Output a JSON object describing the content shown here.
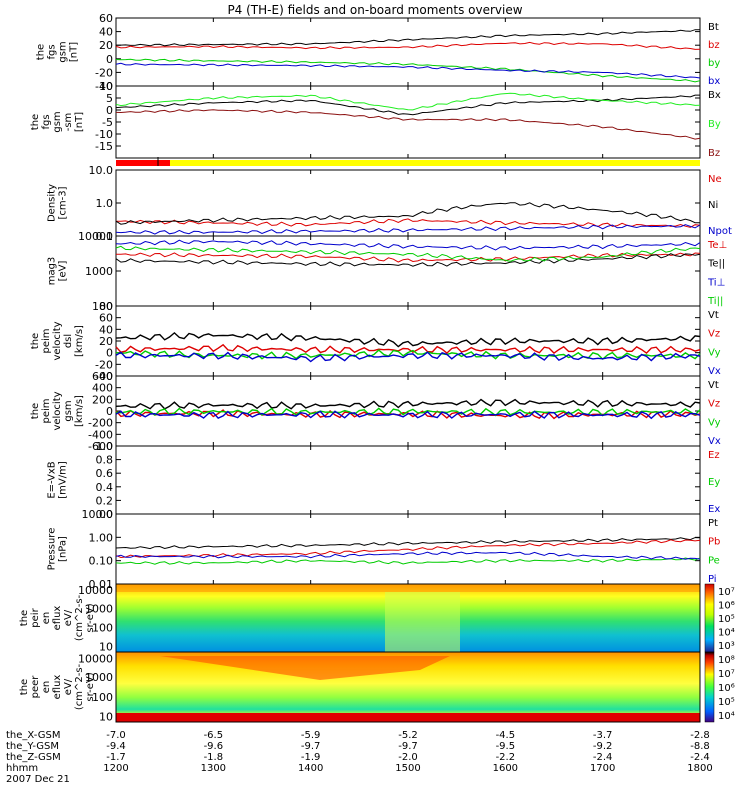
{
  "title": "P4 (TH-E) fields and on-board moments overview",
  "colors": {
    "black": "#000000",
    "red": "#dd0000",
    "green": "#00cc00",
    "blue": "#0000cc",
    "dark_red": "#8b1010",
    "bright_green": "#22ee22",
    "bar_red": "#ff0000",
    "bar_yellow": "#ffff00"
  },
  "ephemeris": {
    "rows": [
      {
        "label": "the_X-GSM",
        "values": [
          "-7.0",
          "-6.5",
          "-5.9",
          "-5.2",
          "-4.5",
          "-3.7",
          "-2.8"
        ]
      },
      {
        "label": "the_Y-GSM",
        "values": [
          "-9.4",
          "-9.6",
          "-9.7",
          "-9.7",
          "-9.5",
          "-9.2",
          "-8.8"
        ]
      },
      {
        "label": "the_Z-GSM",
        "values": [
          "-1.7",
          "-1.8",
          "-1.9",
          "-2.0",
          "-2.2",
          "-2.4",
          "-2.4"
        ]
      },
      {
        "label": "hhmm",
        "values": [
          "1200",
          "1300",
          "1400",
          "1500",
          "1600",
          "1700",
          "1800"
        ]
      }
    ],
    "date": "2007 Dec 21"
  },
  "chart_data": [
    {
      "type": "line",
      "ylabel": [
        "the",
        "fgs",
        "gsm",
        "[nT]"
      ],
      "ylim": [
        -40,
        60
      ],
      "yticks": [
        "60",
        "40",
        "20",
        "0",
        "-20",
        "-40"
      ],
      "legend": [
        "Bt",
        "bz",
        "by",
        "bx"
      ],
      "x": [
        "1200",
        "1300",
        "1400",
        "1500",
        "1600",
        "1700",
        "1800"
      ],
      "series": [
        {
          "name": "Bt",
          "color": "black",
          "values": [
            20,
            21,
            22,
            28,
            34,
            37,
            42
          ]
        },
        {
          "name": "bz",
          "color": "red",
          "values": [
            17,
            18,
            16,
            17,
            23,
            22,
            14
          ]
        },
        {
          "name": "by",
          "color": "green",
          "values": [
            -1,
            -3,
            -5,
            -8,
            -15,
            -25,
            -33
          ]
        },
        {
          "name": "bx",
          "color": "blue",
          "values": [
            -8,
            -9,
            -10,
            -12,
            -17,
            -20,
            -28
          ]
        }
      ]
    },
    {
      "type": "line",
      "ylabel": [
        "the",
        "fgs",
        "gsm",
        "-sm",
        "[nT]"
      ],
      "ylim": [
        -20,
        10
      ],
      "yticks": [
        "10",
        "5",
        "0",
        "-5",
        "-10",
        "-15"
      ],
      "legend": [
        "Bx",
        "By",
        "Bz"
      ],
      "x": [
        "1200",
        "1300",
        "1400",
        "1500",
        "1600",
        "1700",
        "1800"
      ],
      "series": [
        {
          "name": "Bx",
          "color": "black",
          "values": [
            1,
            3,
            4,
            -2,
            3,
            4,
            6
          ]
        },
        {
          "name": "By",
          "color": "bright_green",
          "values": [
            2,
            5,
            6,
            0,
            7,
            4,
            2
          ]
        },
        {
          "name": "Bz",
          "color": "dark_red",
          "values": [
            -1,
            0,
            -1,
            -4,
            -4,
            -7,
            -12
          ]
        }
      ]
    },
    {
      "type": "line",
      "ylabel": [
        "Density",
        "[cm-3]"
      ],
      "scale": "log",
      "ylim": [
        0.1,
        10
      ],
      "yticks": [
        "10.0",
        "1.0",
        "0.1"
      ],
      "legend": [
        "Ne",
        "Ni",
        "Npot"
      ],
      "x": [
        "1200",
        "1300",
        "1400",
        "1500",
        "1600",
        "1700",
        "1800"
      ],
      "series": [
        {
          "name": "Ne",
          "color": "red",
          "values": [
            0.28,
            0.25,
            0.22,
            0.3,
            0.25,
            0.22,
            0.2
          ]
        },
        {
          "name": "Ni",
          "color": "black",
          "values": [
            0.25,
            0.3,
            0.35,
            0.4,
            1.0,
            0.6,
            0.25
          ]
        },
        {
          "name": "Npot",
          "color": "blue",
          "values": [
            0.13,
            0.13,
            0.14,
            0.15,
            0.17,
            0.19,
            0.2
          ]
        }
      ]
    },
    {
      "type": "line",
      "ylabel": [
        "mag3",
        "[eV]"
      ],
      "scale": "log",
      "ylim": [
        100,
        10000
      ],
      "yticks": [
        "10000",
        "1000",
        "100"
      ],
      "legend": [
        "Te⊥",
        "Te||",
        "Ti⊥",
        "Ti||"
      ],
      "x": [
        "1200",
        "1300",
        "1400",
        "1500",
        "1600",
        "1700",
        "1800"
      ],
      "series": [
        {
          "name": "Te⊥",
          "color": "red",
          "values": [
            3000,
            2800,
            2600,
            2000,
            2200,
            2800,
            3000
          ]
        },
        {
          "name": "Te||",
          "color": "black",
          "values": [
            2000,
            1800,
            1600,
            1500,
            1700,
            2200,
            3000
          ]
        },
        {
          "name": "Ti⊥",
          "color": "blue",
          "values": [
            6000,
            7000,
            6000,
            5000,
            4500,
            5000,
            6000
          ]
        },
        {
          "name": "Ti||",
          "color": "green",
          "values": [
            4500,
            4000,
            3500,
            3000,
            2000,
            2500,
            4500
          ]
        }
      ]
    },
    {
      "type": "line",
      "ylabel": [
        "the",
        "peim",
        "velocity",
        "dsl",
        "[km/s]"
      ],
      "ylim": [
        -40,
        80
      ],
      "yticks": [
        "80",
        "60",
        "40",
        "20",
        "0",
        "-20",
        "-40"
      ],
      "legend": [
        "Vt",
        "Vz",
        "Vy",
        "Vx"
      ],
      "x": [
        "1200",
        "1300",
        "1400",
        "1500",
        "1600",
        "1700",
        "1800"
      ],
      "series": [
        {
          "name": "Vt",
          "color": "black",
          "values": [
            25,
            30,
            25,
            15,
            20,
            20,
            25
          ]
        },
        {
          "name": "Vz",
          "color": "red",
          "values": [
            5,
            8,
            5,
            5,
            5,
            5,
            5
          ]
        },
        {
          "name": "Vy",
          "color": "green",
          "values": [
            0,
            -5,
            -5,
            0,
            -5,
            -5,
            -5
          ]
        },
        {
          "name": "Vx",
          "color": "blue",
          "values": [
            -5,
            -5,
            -10,
            -5,
            -5,
            -10,
            -5
          ]
        }
      ]
    },
    {
      "type": "line",
      "ylabel": [
        "the",
        "peim",
        "velocity",
        "gsm",
        "[km/s]"
      ],
      "ylim": [
        -600,
        600
      ],
      "yticks": [
        "600",
        "400",
        "200",
        "0",
        "-200",
        "-400",
        "-600"
      ],
      "legend": [
        "Vt",
        "Vz",
        "Vy",
        "Vx"
      ],
      "x": [
        "1200",
        "1300",
        "1400",
        "1500",
        "1600",
        "1700",
        "1800"
      ],
      "series": [
        {
          "name": "Vt",
          "color": "black",
          "values": [
            80,
            100,
            90,
            120,
            150,
            130,
            110
          ]
        },
        {
          "name": "Vz",
          "color": "red",
          "values": [
            -50,
            -40,
            -60,
            -50,
            -80,
            -60,
            -50
          ]
        },
        {
          "name": "Vy",
          "color": "green",
          "values": [
            -20,
            -10,
            -20,
            -10,
            -20,
            -20,
            -10
          ]
        },
        {
          "name": "Vx",
          "color": "blue",
          "values": [
            -60,
            -70,
            -60,
            -70,
            -60,
            -70,
            -60
          ]
        }
      ]
    },
    {
      "type": "line",
      "ylabel": [
        "E=-VxB",
        "[mV/m]"
      ],
      "ylim": [
        0,
        1
      ],
      "yticks": [
        "1.0",
        "0.8",
        "0.6",
        "0.4",
        "0.2",
        "0.0"
      ],
      "legend": [
        "Ez",
        "Ey",
        "Ex"
      ],
      "series": []
    },
    {
      "type": "line",
      "ylabel": [
        "Pressure",
        "[nPa]"
      ],
      "scale": "log",
      "ylim": [
        0.01,
        10
      ],
      "yticks": [
        "10.00",
        "1.00",
        "0.10",
        "0.01"
      ],
      "legend": [
        "Pt",
        "Pb",
        "Pe",
        "Pi"
      ],
      "x": [
        "1200",
        "1300",
        "1400",
        "1500",
        "1600",
        "1700",
        "1800"
      ],
      "series": [
        {
          "name": "Pt",
          "color": "black",
          "values": [
            0.35,
            0.4,
            0.45,
            0.55,
            0.65,
            0.75,
            0.9
          ]
        },
        {
          "name": "Pb",
          "color": "red",
          "values": [
            0.15,
            0.17,
            0.2,
            0.3,
            0.45,
            0.55,
            0.75
          ]
        },
        {
          "name": "Pe",
          "color": "green",
          "values": [
            0.08,
            0.08,
            0.1,
            0.08,
            0.1,
            0.1,
            0.12
          ]
        },
        {
          "name": "Pi",
          "color": "blue",
          "values": [
            0.15,
            0.15,
            0.15,
            0.2,
            0.22,
            0.15,
            0.12
          ]
        }
      ]
    },
    {
      "type": "heatmap",
      "ylabel": [
        "the",
        "peir",
        "en",
        "eflux",
        "eV/",
        "(cm^2-s-",
        "sr-eV)"
      ],
      "yticks": [
        "10000",
        "1000",
        "100",
        "10"
      ],
      "colorbar_ticks": [
        "10⁷",
        "10⁶",
        "10⁵",
        "10⁴",
        "10³"
      ],
      "x": [
        "1200",
        "1300",
        "1400",
        "1500",
        "1600",
        "1700",
        "1800"
      ]
    },
    {
      "type": "heatmap",
      "ylabel": [
        "the",
        "peer",
        "en",
        "eflux",
        "eV/",
        "(cm^2-s-",
        "sr-eV)"
      ],
      "yticks": [
        "10000",
        "1000",
        "100",
        "10"
      ],
      "colorbar_ticks": [
        "10⁸",
        "10⁷",
        "10⁶",
        "10⁵",
        "10⁴"
      ],
      "x": [
        "1200",
        "1300",
        "1400",
        "1500",
        "1600",
        "1700",
        "1800"
      ]
    }
  ]
}
